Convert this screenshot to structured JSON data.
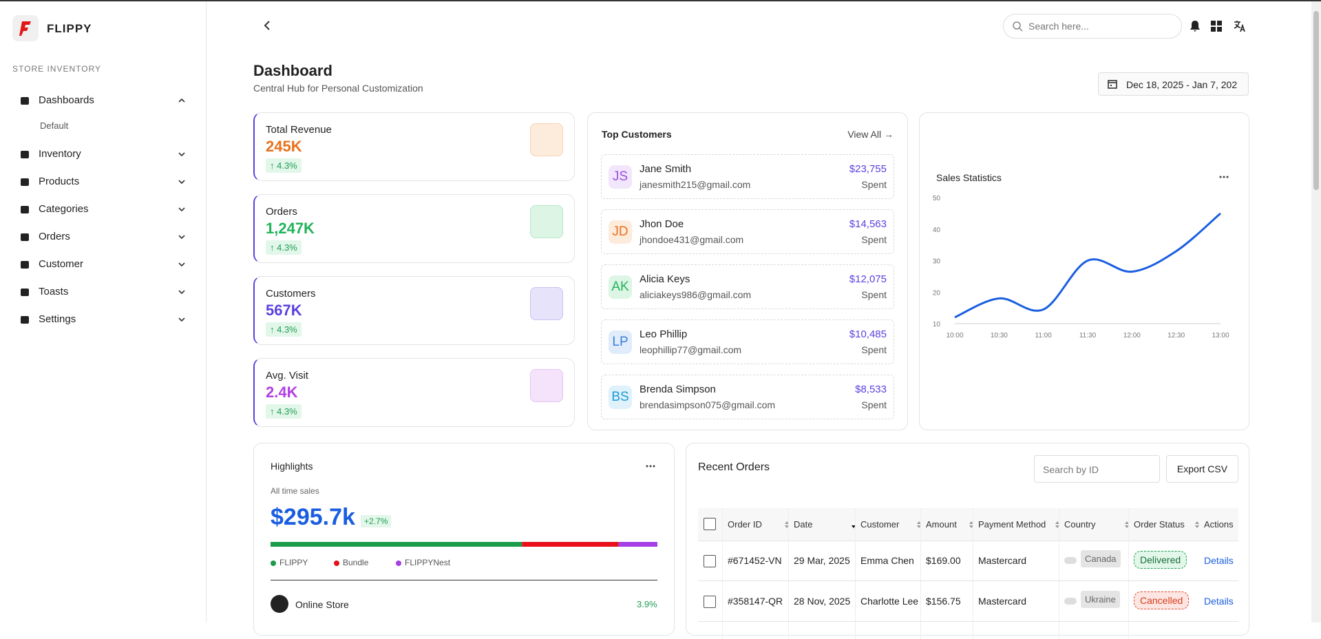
{
  "sidebar": {
    "brand": "FLIPPY",
    "section": "STORE INVENTORY",
    "menu": [
      {
        "label": "Dashboards",
        "sub": "Default"
      },
      {
        "label": "Inventory"
      },
      {
        "label": "Products"
      },
      {
        "label": "Categories"
      },
      {
        "label": "Orders"
      },
      {
        "label": "Customer"
      },
      {
        "label": "Toasts"
      },
      {
        "label": "Settings"
      }
    ]
  },
  "topbar": {
    "search_placeholder": "Search here..."
  },
  "header": {
    "title": "Dashboard",
    "subtitle": "Central Hub for Personal Customization",
    "date_range": "Dec 18, 2025 - Jan 7, 202"
  },
  "stats": [
    {
      "label": "Total Revenue",
      "value": "245K",
      "change": "↑ 4.3%",
      "color": "#e8711c",
      "bg": "#fdebdc"
    },
    {
      "label": "Orders",
      "value": "1,247K",
      "change": "↑ 4.3%",
      "color": "#22b35a",
      "bg": "#dcf5e5"
    },
    {
      "label": "Customers",
      "value": "567K",
      "change": "↑ 4.3%",
      "color": "#5b3fe0",
      "bg": "#e7e3fb"
    },
    {
      "label": "Avg. Visit",
      "value": "2.4K",
      "change": "↑ 4.3%",
      "color": "#b23fe6",
      "bg": "#f4e3fb"
    }
  ],
  "top_customers": {
    "title": "Top Customers",
    "view_all": "View All →",
    "rows": [
      {
        "initials": "JS",
        "name": "Jane Smith",
        "email": "janesmith215@gmail.com",
        "amount": "$23,755",
        "note": "Spent",
        "color": "#9a4de0",
        "bg": "#f1e6fb"
      },
      {
        "initials": "JD",
        "name": "Jhon Doe",
        "email": "jhondoe431@gmail.com",
        "amount": "$14,563",
        "note": "Spent",
        "color": "#e8711c",
        "bg": "#fdebdc"
      },
      {
        "initials": "AK",
        "name": "Alicia Keys",
        "email": "aliciakeys986@gmail.com",
        "amount": "$12,075",
        "note": "Spent",
        "color": "#22b35a",
        "bg": "#dcf5e5"
      },
      {
        "initials": "LP",
        "name": "Leo Phillip",
        "email": "leophillip77@gmail.com",
        "amount": "$10,485",
        "note": "Spent",
        "color": "#3b7de0",
        "bg": "#e1ecfb"
      },
      {
        "initials": "BS",
        "name": "Brenda Simpson",
        "email": "brendasimpson075@gmail.com",
        "amount": "$8,533",
        "note": "Spent",
        "color": "#1f9ad6",
        "bg": "#dff1fb"
      }
    ]
  },
  "sales_chart": {
    "type": "line",
    "title": "Sales Statistics",
    "x": [
      "10:00",
      "10:30",
      "11:00",
      "11:30",
      "12:00",
      "12:30",
      "13:00"
    ],
    "values": [
      12,
      18,
      14.5,
      30,
      26.5,
      33,
      45
    ],
    "color": "#1a5ee0",
    "ylim": [
      10,
      50
    ],
    "yticks": [
      10,
      20,
      30,
      40,
      50
    ]
  },
  "highlights": {
    "title": "Highlights",
    "caption": "All time sales",
    "total": "$295.7k",
    "change": "+2.7%",
    "segments": [
      {
        "name": "FLIPPY",
        "color": "#1a9c4a",
        "share": 65
      },
      {
        "name": "Bundle",
        "color": "#e8101a",
        "share": 25
      },
      {
        "name": "FLIPPYNest",
        "color": "#a63fe6",
        "share": 10
      }
    ],
    "store": {
      "name": "Online Store",
      "change": "3.9%"
    }
  },
  "recent_orders": {
    "title": "Recent Orders",
    "search_placeholder": "Search by ID",
    "export": "Export CSV",
    "columns": [
      "Order ID",
      "Date",
      "Customer",
      "Amount",
      "Payment Method",
      "Country",
      "Order Status",
      "Actions"
    ],
    "rows": [
      {
        "id": "#671452-VN",
        "date": "29 Mar, 2025",
        "customer": "Emma Chen",
        "amount": "$169.00",
        "payment": "Mastercard",
        "country": "Canada",
        "status": "Delivered",
        "action": "Details"
      },
      {
        "id": "#358147-QR",
        "date": "28 Nov, 2025",
        "customer": "Charlotte Lee",
        "amount": "$156.75",
        "payment": "Mastercard",
        "country": "Ukraine",
        "status": "Cancelled",
        "action": "Details"
      }
    ]
  }
}
